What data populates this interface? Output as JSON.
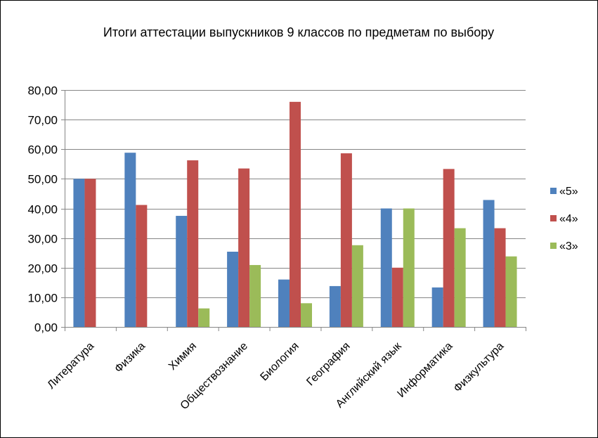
{
  "chart_data": {
    "type": "bar",
    "title": "Итоги аттестации выпускников 9 классов  по предметам по выбору",
    "xlabel": "",
    "ylabel": "",
    "ylim": [
      0,
      80
    ],
    "yticks": [
      "0,00",
      "10,00",
      "20,00",
      "30,00",
      "40,00",
      "50,00",
      "60,00",
      "70,00",
      "80,00"
    ],
    "grid": true,
    "legend_position": "right",
    "categories": [
      "Литература",
      "Физика",
      "Химия",
      "Обществознание",
      "Биология",
      "География",
      "Английский язык",
      "Информатика",
      "Физкультура"
    ],
    "series": [
      {
        "name": "«5»",
        "color": "#4F81BD",
        "values": [
          50.0,
          58.82,
          37.5,
          25.4,
          16.0,
          13.79,
          40.0,
          13.33,
          42.86
        ]
      },
      {
        "name": "«4»",
        "color": "#C0504D",
        "values": [
          50.0,
          41.18,
          56.25,
          53.5,
          76.0,
          58.62,
          20.0,
          53.33,
          33.33
        ]
      },
      {
        "name": "«3»",
        "color": "#9BBB59",
        "values": [
          0,
          0,
          6.25,
          20.9,
          8.0,
          27.59,
          40.0,
          33.33,
          23.81
        ]
      }
    ]
  }
}
